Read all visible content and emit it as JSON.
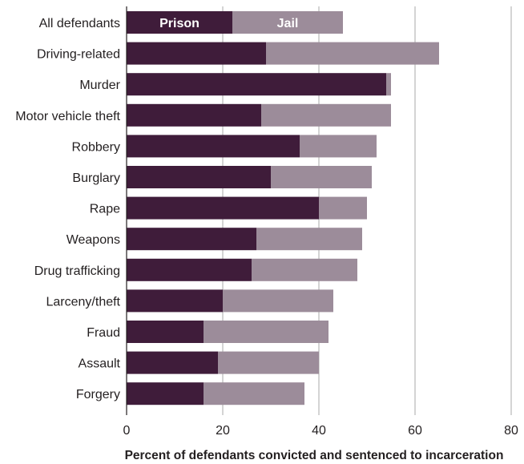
{
  "chart_data": {
    "type": "bar",
    "orientation": "horizontal",
    "stacked": true,
    "categories": [
      "All defendants",
      "Driving-related",
      "Murder",
      "Motor vehicle theft",
      "Robbery",
      "Burglary",
      "Rape",
      "Weapons",
      "Drug trafficking",
      "Larceny/theft",
      "Fraud",
      "Assault",
      "Forgery"
    ],
    "series": [
      {
        "name": "Prison",
        "color": "#3f1c3a",
        "values": [
          22,
          29,
          54,
          28,
          36,
          30,
          40,
          27,
          26,
          20,
          16,
          19,
          16
        ]
      },
      {
        "name": "Jail",
        "color": "#9c8c9a",
        "values": [
          23,
          36,
          1,
          27,
          16,
          21,
          10,
          22,
          22,
          23,
          26,
          21,
          21
        ]
      }
    ],
    "xlabel": "Percent of defendants convicted and sentenced to incarceration",
    "xlim": [
      0,
      80
    ],
    "xticks": [
      0,
      20,
      40,
      60,
      80
    ],
    "grid": true,
    "legend_placement": "inside first bar"
  }
}
